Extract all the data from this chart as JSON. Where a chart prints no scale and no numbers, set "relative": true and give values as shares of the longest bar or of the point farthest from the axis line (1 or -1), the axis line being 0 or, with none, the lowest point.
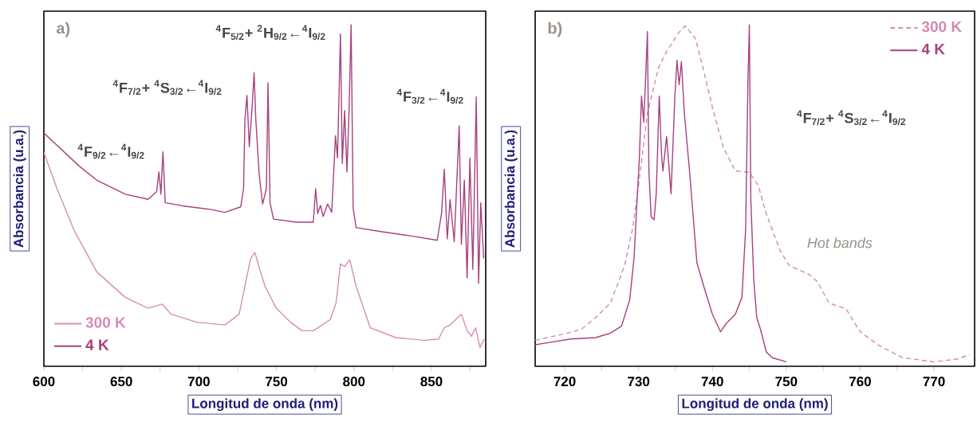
{
  "chart_data": [
    {
      "type": "line",
      "title": "a)",
      "relative": true,
      "xlabel": "Longitud de onda (nm)",
      "ylabel": "Absorbancia (u.a.)",
      "legend": "bottom left",
      "xlim": [
        600,
        885
      ],
      "xticks": [
        600,
        {
          "value": 625,
          "label": null
        },
        650,
        {
          "value": 675,
          "label": null
        },
        700,
        {
          "value": 725,
          "label": null
        },
        750,
        {
          "value": 775,
          "label": null
        },
        800,
        {
          "value": 825,
          "label": null
        },
        850,
        {
          "value": 875,
          "label": null
        }
      ],
      "annotations": [
        "$^{4}$F$_{9/2}$←$^{4}$I$_{9/2}$",
        "$^{4}$F$_{7/2}$+ $^{4}$S$_{3/2}$←$^{4}$I$_{9/2}$",
        "$^{4}$F$_{5/2}$+ $^{2}$H$_{9/2}$←$^{4}$I$_{9/2}$",
        "$^{4}$F$_{3/2}$←$^{4}$I$_{9/2}$"
      ],
      "series": [
        {
          "name": "300 K",
          "color": "#d98bb5",
          "line_style": "solid",
          "x": [
            600,
            608.5,
            619.5,
            634.2,
            652.5,
            667.2,
            676.4,
            681.9,
            698.5,
            716.8,
            726.0,
            729.7,
            733.4,
            736.1,
            739.8,
            742.6,
            749.9,
            759.1,
            766.5,
            773.8,
            784.8,
            788.5,
            791.3,
            794.0,
            797.3,
            801.4,
            810.5,
            827.1,
            845.5,
            854.6,
            858.3,
            862.0,
            865.7,
            869.3,
            873.0,
            875.8,
            878.5,
            881.3,
            884.0
          ],
          "values": [
            0.626,
            0.52,
            0.398,
            0.276,
            0.202,
            0.17,
            0.182,
            0.153,
            0.129,
            0.121,
            0.153,
            0.235,
            0.316,
            0.333,
            0.276,
            0.235,
            0.17,
            0.129,
            0.104,
            0.104,
            0.137,
            0.186,
            0.3,
            0.292,
            0.312,
            0.235,
            0.113,
            0.084,
            0.076,
            0.08,
            0.113,
            0.121,
            0.137,
            0.153,
            0.104,
            0.088,
            0.113,
            0.055,
            0.08
          ]
        },
        {
          "name": "4 K",
          "color": "#a8407e",
          "line_style": "solid",
          "x": [
            600,
            623.1,
            634.2,
            652.5,
            667.2,
            672.8,
            674.2,
            675.5,
            676.8,
            678.3,
            689.3,
            707.7,
            716.8,
            727.0,
            728.8,
            729.7,
            731.0,
            732.5,
            734.3,
            735.6,
            736.7,
            738.9,
            741.1,
            743.5,
            744.6,
            745.9,
            748.1,
            762.8,
            773.8,
            775.3,
            776.6,
            778.4,
            780.2,
            783.0,
            785.7,
            788.1,
            789.4,
            791.3,
            792.5,
            794.0,
            795.5,
            796.8,
            798.2,
            799.5,
            801.4,
            817.9,
            836.3,
            853.7,
            856.5,
            858.3,
            860.2,
            862.0,
            864.7,
            867.9,
            869.3,
            871.2,
            873.0,
            874.8,
            876.7,
            878.9,
            880.4,
            881.8,
            883.7
          ],
          "values": [
            0.683,
            0.585,
            0.545,
            0.504,
            0.489,
            0.512,
            0.569,
            0.504,
            0.628,
            0.479,
            0.47,
            0.459,
            0.451,
            0.467,
            0.52,
            0.724,
            0.793,
            0.643,
            0.757,
            0.859,
            0.724,
            0.561,
            0.475,
            0.52,
            0.83,
            0.479,
            0.431,
            0.422,
            0.422,
            0.52,
            0.447,
            0.471,
            0.439,
            0.475,
            0.451,
            0.675,
            0.61,
            0.973,
            0.594,
            0.749,
            0.569,
            0.74,
            1.0,
            0.463,
            0.406,
            0.394,
            0.382,
            0.369,
            0.447,
            0.577,
            0.373,
            0.488,
            0.365,
            0.704,
            0.357,
            0.545,
            0.259,
            0.61,
            0.284,
            0.789,
            0.243,
            0.479,
            0.316
          ]
        }
      ]
    },
    {
      "type": "line",
      "title": "b)",
      "relative": true,
      "xlabel": "Longitud de onda (nm)",
      "ylabel": "Absorbancia (u.a.)",
      "legend": "top right",
      "xlim": [
        716,
        775.5
      ],
      "xticks": [
        720,
        {
          "value": 725,
          "label": null
        },
        730,
        {
          "value": 735,
          "label": null
        },
        740,
        {
          "value": 745,
          "label": null
        },
        750,
        {
          "value": 755,
          "label": null
        },
        760,
        {
          "value": 765,
          "label": null
        },
        770
      ],
      "annotations": [
        "$^{4}$F$_{7/2}$+ $^{4}$S$_{3/2}$←$^{4}$I$_{9/2}$",
        "Hot bands"
      ],
      "series": [
        {
          "name": "300 K",
          "color": "#d48aae",
          "line_style": "dashed",
          "x": [
            716.0,
            720.4,
            722.3,
            724.2,
            726.2,
            728.1,
            729.2,
            730.0,
            731.2,
            732.7,
            733.8,
            735.4,
            736.3,
            737.7,
            738.8,
            740.0,
            741.5,
            743.1,
            745.0,
            746.2,
            747.3,
            749.2,
            750.4,
            753.1,
            754.2,
            755.8,
            758.1,
            760.0,
            762.7,
            765.8,
            770.0,
            773.1,
            774.8
          ],
          "values": [
            0.076,
            0.097,
            0.109,
            0.143,
            0.185,
            0.295,
            0.404,
            0.53,
            0.741,
            0.875,
            0.922,
            0.976,
            0.997,
            0.96,
            0.867,
            0.758,
            0.64,
            0.572,
            0.568,
            0.53,
            0.446,
            0.337,
            0.295,
            0.269,
            0.248,
            0.185,
            0.168,
            0.101,
            0.059,
            0.025,
            0.013,
            0.021,
            0.034
          ]
        },
        {
          "name": "4 K",
          "color": "#a8407e",
          "line_style": "solid",
          "x": [
            716.0,
            718.5,
            720.8,
            724.2,
            726.2,
            727.7,
            728.8,
            729.4,
            729.8,
            730.1,
            730.4,
            730.7,
            731.0,
            731.2,
            731.4,
            731.7,
            732.1,
            732.4,
            732.8,
            733.1,
            733.3,
            733.8,
            734.4,
            734.9,
            735.2,
            735.5,
            735.8,
            736.2,
            736.9,
            737.9,
            738.8,
            740.0,
            741.1,
            741.9,
            743.1,
            744.0,
            744.5,
            744.8,
            745.0,
            745.2,
            745.6,
            746.0,
            746.5,
            747.3,
            748.1,
            750.0
          ],
          "values": [
            0.063,
            0.072,
            0.08,
            0.084,
            0.097,
            0.118,
            0.194,
            0.32,
            0.488,
            0.606,
            0.791,
            0.715,
            0.867,
            0.98,
            0.572,
            0.438,
            0.429,
            0.507,
            0.791,
            0.623,
            0.572,
            0.673,
            0.505,
            0.783,
            0.896,
            0.825,
            0.892,
            0.741,
            0.572,
            0.303,
            0.236,
            0.152,
            0.101,
            0.126,
            0.152,
            0.202,
            0.404,
            0.825,
            1.0,
            0.488,
            0.253,
            0.143,
            0.109,
            0.042,
            0.025,
            0.013
          ]
        }
      ]
    }
  ]
}
